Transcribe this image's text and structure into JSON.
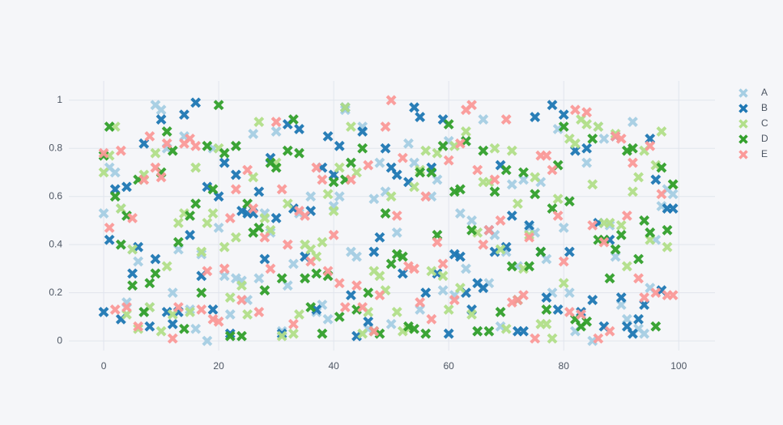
{
  "chart_data": {
    "type": "scatter",
    "x": [
      0,
      1,
      2,
      3,
      4,
      5,
      6,
      7,
      8,
      9,
      10,
      11,
      12,
      13,
      14,
      15,
      16,
      17,
      18,
      19,
      20,
      21,
      22,
      23,
      24,
      25,
      26,
      27,
      28,
      29,
      30,
      31,
      32,
      33,
      34,
      35,
      36,
      37,
      38,
      39,
      40,
      41,
      42,
      43,
      44,
      45,
      46,
      47,
      48,
      49,
      50,
      51,
      52,
      53,
      54,
      55,
      56,
      57,
      58,
      59,
      60,
      61,
      62,
      63,
      64,
      65,
      66,
      67,
      68,
      69,
      70,
      71,
      72,
      73,
      74,
      75,
      76,
      77,
      78,
      79,
      80,
      81,
      82,
      83,
      84,
      85,
      86,
      87,
      88,
      89,
      90,
      91,
      92,
      93,
      94,
      95,
      96,
      97,
      98,
      99
    ],
    "xlim": [
      -6.06,
      106.3
    ],
    "xticks": [
      0,
      20,
      40,
      60,
      80,
      100
    ],
    "ylim": [
      -0.04,
      1.08
    ],
    "yticks": [
      0,
      0.2,
      0.4,
      0.6,
      0.8,
      1
    ],
    "grid": true,
    "series": [
      {
        "name": "A",
        "color": "#a6cee3",
        "values": [
          0.53,
          0.72,
          0.7,
          0.55,
          0.16,
          0.38,
          0.33,
          0.12,
          0.14,
          0.98,
          0.96,
          0.8,
          0.2,
          0.38,
          0.85,
          0.13,
          0.05,
          0.36,
          0.0,
          0.8,
          0.47,
          0.27,
          0.11,
          0.26,
          0.25,
          0.17,
          0.86,
          0.26,
          0.53,
          0.45,
          0.87,
          0.04,
          0.23,
          0.32,
          0.53,
          0.35,
          0.6,
          0.12,
          0.15,
          0.09,
          0.56,
          0.6,
          0.96,
          0.37,
          0.35,
          0.89,
          0.05,
          0.59,
          0.74,
          0.62,
          0.07,
          0.45,
          0.28,
          0.82,
          0.74,
          0.13,
          0.2,
          0.6,
          0.67,
          0.21,
          0.83,
          0.19,
          0.53,
          0.3,
          0.5,
          0.04,
          0.92,
          0.24,
          0.44,
          0.06,
          0.37,
          0.65,
          0.31,
          0.67,
          0.47,
          0.45,
          0.66,
          0.34,
          0.2,
          0.88,
          0.47,
          0.2,
          0.04,
          0.11,
          0.74,
          0.0,
          0.89,
          0.84,
          0.48,
          0.35,
          0.15,
          0.09,
          0.91,
          0.05,
          0.03,
          0.22,
          0.42,
          0.56,
          0.63,
          0.61
        ]
      },
      {
        "name": "B",
        "color": "#1f78b4",
        "values": [
          0.12,
          0.42,
          0.63,
          0.09,
          0.64,
          0.28,
          0.39,
          0.82,
          0.06,
          0.34,
          0.92,
          0.12,
          0.07,
          0.12,
          0.94,
          0.44,
          0.99,
          0.27,
          0.64,
          0.13,
          0.6,
          0.74,
          0.03,
          0.69,
          0.54,
          0.53,
          0.53,
          0.62,
          0.34,
          0.76,
          0.51,
          0.03,
          0.9,
          0.55,
          0.88,
          0.35,
          0.54,
          0.13,
          0.72,
          0.85,
          0.69,
          0.81,
          0.97,
          0.19,
          0.02,
          0.87,
          0.08,
          0.37,
          0.43,
          0.8,
          0.72,
          0.69,
          0.28,
          0.66,
          0.97,
          0.93,
          0.2,
          0.72,
          0.28,
          0.92,
          0.03,
          0.36,
          0.35,
          0.2,
          0.13,
          0.24,
          0.22,
          0.46,
          0.37,
          0.73,
          0.39,
          0.52,
          0.04,
          0.04,
          0.48,
          0.93,
          0.37,
          0.18,
          0.98,
          0.13,
          0.94,
          0.37,
          0.79,
          0.12,
          0.8,
          0.17,
          0.49,
          0.06,
          0.42,
          0.85,
          0.18,
          0.06,
          0.03,
          0.09,
          0.15,
          0.84,
          0.67,
          0.21,
          0.55,
          0.55
        ]
      },
      {
        "name": "C",
        "color": "#b2df8a",
        "values": [
          0.7,
          0.77,
          0.89,
          0.55,
          0.11,
          0.38,
          0.05,
          0.69,
          0.14,
          0.78,
          0.04,
          0.31,
          0.11,
          0.49,
          0.53,
          0.12,
          0.72,
          0.37,
          0.49,
          0.53,
          0.8,
          0.39,
          0.18,
          0.43,
          0.23,
          0.11,
          0.68,
          0.91,
          0.51,
          0.46,
          0.74,
          0.02,
          0.57,
          0.03,
          0.11,
          0.4,
          0.38,
          0.35,
          0.41,
          0.61,
          0.54,
          0.72,
          0.97,
          0.89,
          0.7,
          0.03,
          0.12,
          0.29,
          0.27,
          0.21,
          0.6,
          0.12,
          0.04,
          0.05,
          0.64,
          0.71,
          0.79,
          0.29,
          0.78,
          0.27,
          0.13,
          0.81,
          0.22,
          0.87,
          0.11,
          0.45,
          0.66,
          0.66,
          0.8,
          0.38,
          0.05,
          0.79,
          0.57,
          0.3,
          0.44,
          0.68,
          0.07,
          0.07,
          0.01,
          0.59,
          0.24,
          0.84,
          0.82,
          0.92,
          0.9,
          0.65,
          0.89,
          0.49,
          0.49,
          0.86,
          0.48,
          0.31,
          0.62,
          0.68,
          0.79,
          0.42,
          0.73,
          0.87,
          0.39,
          0.65
        ]
      },
      {
        "name": "D",
        "color": "#33a02c",
        "values": [
          0.77,
          0.89,
          0.6,
          0.4,
          0.52,
          0.23,
          0.67,
          0.12,
          0.24,
          0.28,
          0.7,
          0.87,
          0.79,
          0.41,
          0.05,
          0.52,
          0.57,
          0.2,
          0.81,
          0.63,
          0.98,
          0.78,
          0.02,
          0.81,
          0.02,
          0.57,
          0.45,
          0.47,
          0.21,
          0.74,
          0.72,
          0.26,
          0.79,
          0.92,
          0.78,
          0.26,
          0.14,
          0.28,
          0.03,
          0.27,
          0.66,
          0.1,
          0.67,
          0.74,
          0.13,
          0.8,
          0.2,
          0.04,
          0.03,
          0.53,
          0.32,
          0.36,
          0.35,
          0.06,
          0.05,
          0.7,
          0.03,
          0.7,
          0.44,
          0.81,
          0.9,
          0.62,
          0.63,
          0.83,
          0.46,
          0.04,
          0.79,
          0.04,
          0.62,
          0.12,
          0.71,
          0.31,
          0.17,
          0.7,
          0.31,
          0.61,
          0.37,
          0.13,
          0.55,
          0.73,
          0.89,
          0.58,
          0.09,
          0.06,
          0.08,
          0.84,
          0.42,
          0.42,
          0.26,
          0.38,
          0.44,
          0.79,
          0.8,
          0.34,
          0.5,
          0.45,
          0.06,
          0.72,
          0.46,
          0.65
        ]
      },
      {
        "name": "E",
        "color": "#fb9a99",
        "values": [
          0.78,
          0.47,
          0.13,
          0.79,
          0.14,
          0.51,
          0.06,
          0.67,
          0.85,
          0.72,
          0.68,
          0.82,
          0.01,
          0.14,
          0.82,
          0.84,
          0.81,
          0.13,
          0.29,
          0.09,
          0.08,
          0.3,
          0.51,
          0.63,
          0.17,
          0.71,
          0.55,
          0.12,
          0.43,
          0.3,
          0.91,
          0.63,
          0.4,
          0.07,
          0.54,
          0.52,
          0.33,
          0.72,
          0.67,
          0.29,
          0.44,
          0.24,
          0.14,
          0.67,
          0.23,
          0.14,
          0.73,
          0.04,
          0.19,
          0.89,
          1.0,
          0.52,
          0.76,
          0.31,
          0.3,
          0.16,
          0.6,
          0.09,
          0.41,
          0.32,
          0.75,
          0.17,
          0.82,
          0.96,
          0.98,
          0.71,
          0.4,
          0.46,
          0.67,
          0.5,
          0.92,
          0.16,
          0.17,
          0.19,
          0.43,
          0.01,
          0.77,
          0.77,
          0.71,
          0.52,
          0.33,
          0.12,
          0.96,
          0.11,
          0.95,
          0.48,
          0.01,
          0.41,
          0.04,
          0.85,
          0.84,
          0.52,
          0.74,
          0.26,
          0.18,
          0.81,
          0.2,
          0.61,
          0.19,
          0.19
        ]
      }
    ]
  }
}
